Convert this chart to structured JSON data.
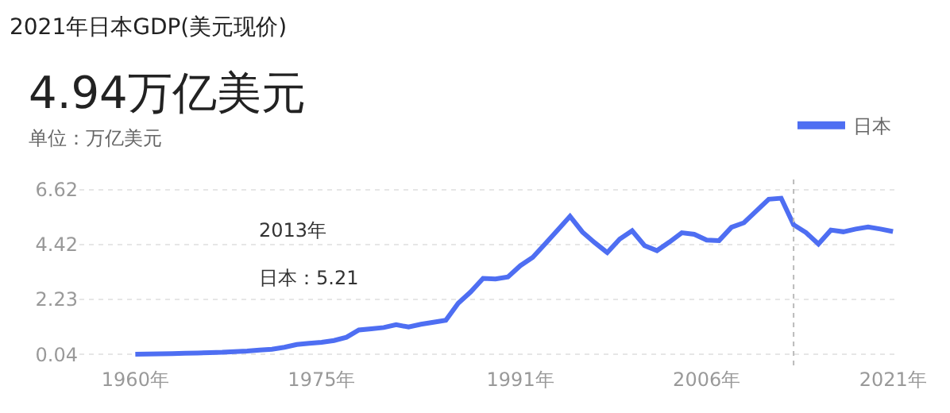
{
  "chart_data": {
    "type": "line",
    "title": "2021年日本GDP(美元现价)",
    "subtitle": "4.94万亿美元",
    "ylabel": "单位：万亿美元",
    "x": [
      1960,
      1961,
      1962,
      1963,
      1964,
      1965,
      1966,
      1967,
      1968,
      1969,
      1970,
      1971,
      1972,
      1973,
      1974,
      1975,
      1976,
      1977,
      1978,
      1979,
      1980,
      1981,
      1982,
      1983,
      1984,
      1985,
      1986,
      1987,
      1988,
      1989,
      1990,
      1991,
      1992,
      1993,
      1994,
      1995,
      1996,
      1997,
      1998,
      1999,
      2000,
      2001,
      2002,
      2003,
      2004,
      2005,
      2006,
      2007,
      2008,
      2009,
      2010,
      2011,
      2012,
      2013,
      2014,
      2015,
      2016,
      2017,
      2018,
      2019,
      2020,
      2021
    ],
    "series": [
      {
        "name": "日本",
        "color": "#4e6ef2",
        "values": [
          0.04,
          0.05,
          0.06,
          0.07,
          0.08,
          0.09,
          0.11,
          0.12,
          0.15,
          0.17,
          0.21,
          0.24,
          0.32,
          0.43,
          0.48,
          0.52,
          0.59,
          0.72,
          1.01,
          1.06,
          1.11,
          1.22,
          1.13,
          1.24,
          1.32,
          1.4,
          2.08,
          2.53,
          3.07,
          3.05,
          3.13,
          3.58,
          3.91,
          4.45,
          5.0,
          5.55,
          4.92,
          4.49,
          4.1,
          4.64,
          4.97,
          4.38,
          4.18,
          4.52,
          4.89,
          4.83,
          4.6,
          4.58,
          5.11,
          5.29,
          5.76,
          6.23,
          6.27,
          5.21,
          4.9,
          4.44,
          5.0,
          4.93,
          5.04,
          5.12,
          5.04,
          4.94
        ]
      }
    ],
    "xlim": [
      1955.5,
      2021.5
    ],
    "ylim": [
      -0.4,
      6.7
    ],
    "xticks": [
      {
        "value": 1960,
        "label": "1960年"
      },
      {
        "value": 1975,
        "label": "1975年"
      },
      {
        "value": 1991,
        "label": "1991年"
      },
      {
        "value": 2006,
        "label": "2006年"
      },
      {
        "value": 2021,
        "label": "2021年"
      }
    ],
    "yticks": [
      0.04,
      2.23,
      4.42,
      6.62
    ],
    "grid": "y",
    "legend": "top right",
    "marker": "none",
    "line_style": "solid",
    "ref_lines": [
      {
        "axis": "x",
        "value": 2013,
        "color": "#bbbbbb",
        "line_style": "dotted"
      }
    ],
    "annotations": [
      "2013年",
      "日本：5.21"
    ]
  }
}
